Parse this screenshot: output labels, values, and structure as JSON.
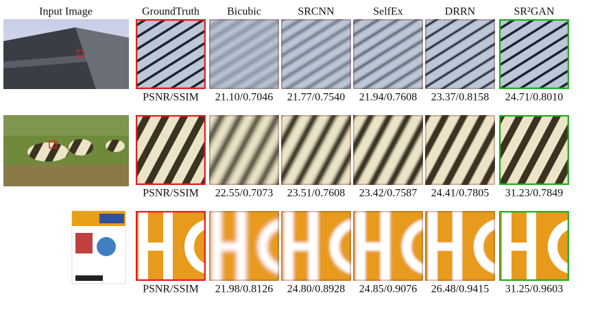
{
  "header": {
    "columns": [
      "Input Image",
      "GroundTruth",
      "Bicubic",
      "SRCNN",
      "SelfEx",
      "DRRN",
      "SR²GAN"
    ]
  },
  "rows": [
    {
      "metric": "PSNR/SSIM",
      "scores": [
        "21.10/0.7046",
        "21.77/0.7540",
        "21.94/0.7608",
        "23.37/0.8158",
        "24.71/0.8010"
      ]
    },
    {
      "metric": "PSNR/SSIM",
      "scores": [
        "22.55/0.7073",
        "23.51/0.7608",
        "23.42/0.7587",
        "24.41/0.7805",
        "31.23/0.7849"
      ]
    },
    {
      "metric": "PSNR/SSIM",
      "scores": [
        "21.98/0.8126",
        "24.80/0.8928",
        "24.85/0.9076",
        "26.48/0.9415",
        "31.25/0.9603"
      ]
    }
  ]
}
